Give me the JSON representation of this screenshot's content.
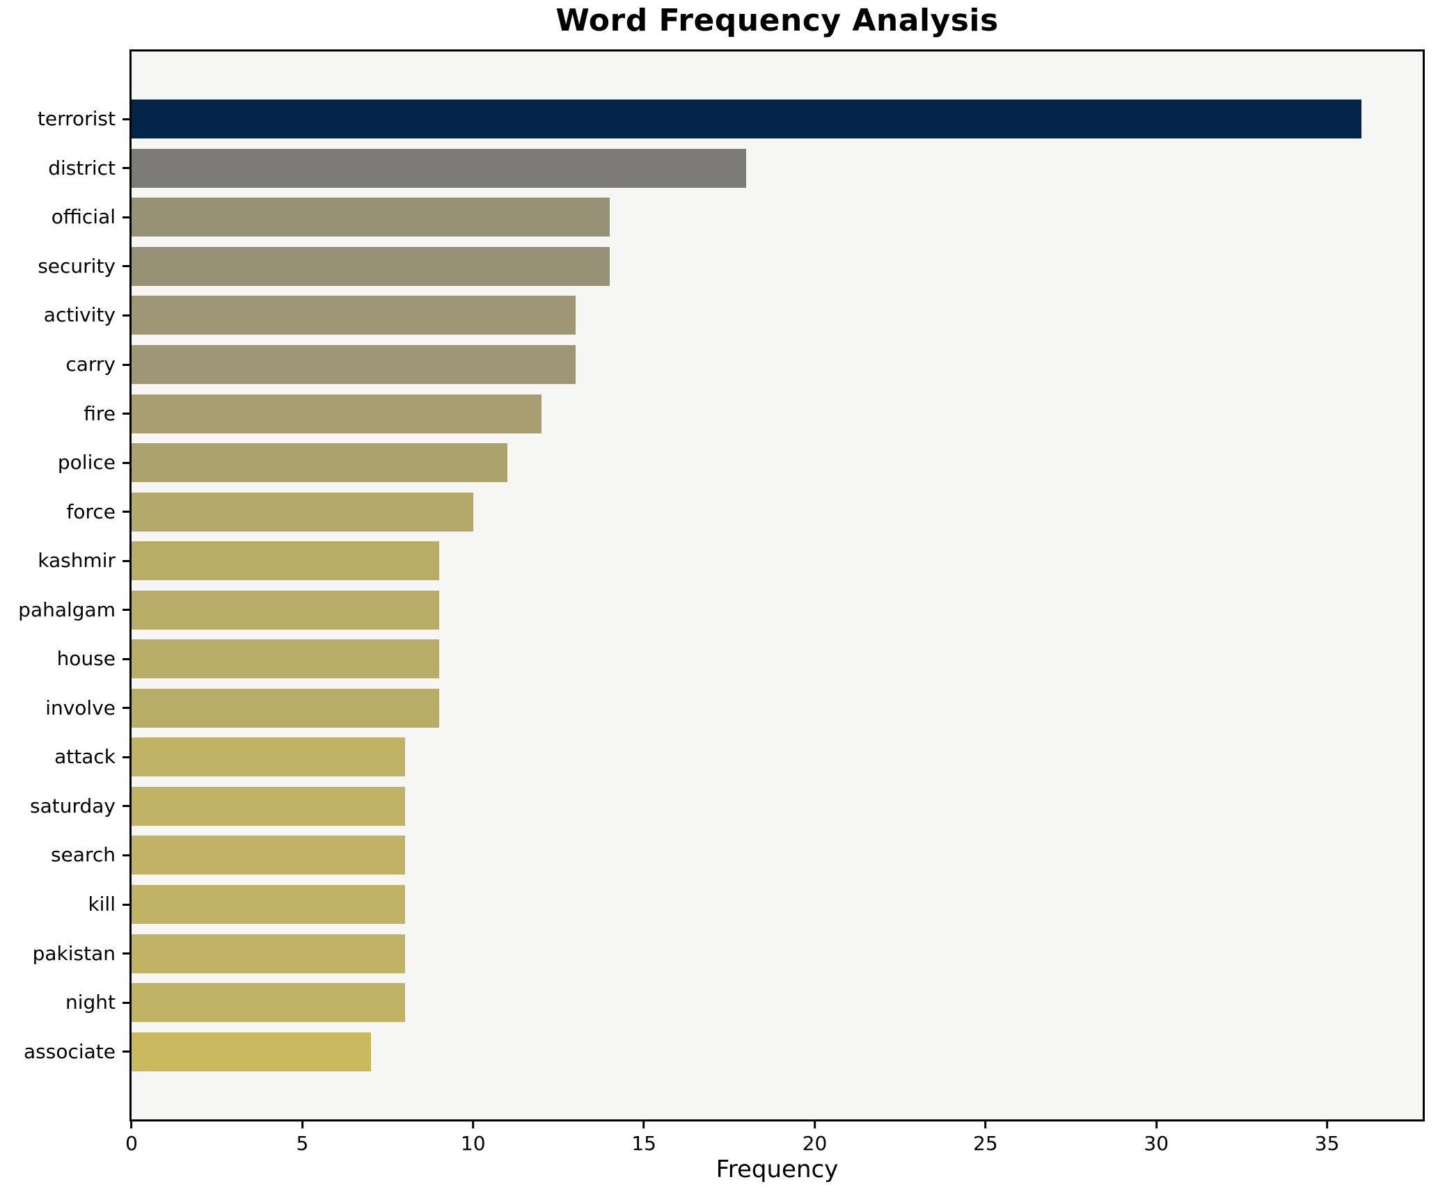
{
  "chart_data": {
    "type": "bar",
    "orientation": "horizontal",
    "title": "Word Frequency Analysis",
    "xlabel": "Frequency",
    "ylabel": "",
    "categories": [
      "terrorist",
      "district",
      "official",
      "security",
      "activity",
      "carry",
      "fire",
      "police",
      "force",
      "kashmir",
      "pahalgam",
      "house",
      "involve",
      "attack",
      "saturday",
      "search",
      "kill",
      "pakistan",
      "night",
      "associate"
    ],
    "values": [
      36,
      18,
      14,
      14,
      13,
      13,
      12,
      11,
      10,
      9,
      9,
      9,
      9,
      8,
      8,
      8,
      8,
      8,
      8,
      7
    ],
    "bar_colors": [
      "#032349",
      "#7C7B78",
      "#979176",
      "#979176",
      "#9E9675",
      "#9E9675",
      "#A89E71",
      "#ACA26E",
      "#B3A96B",
      "#B7AC68",
      "#B7AC68",
      "#B7AC68",
      "#B7AC68",
      "#C1B366",
      "#C1B366",
      "#C1B366",
      "#C1B366",
      "#C1B366",
      "#C1B366",
      "#CAB95F"
    ],
    "x_ticks": [
      0,
      5,
      10,
      15,
      20,
      25,
      30,
      35
    ],
    "xlim": [
      0,
      37.8
    ],
    "grid": false,
    "legend_position": "none",
    "plot_background": "#F6F6F4",
    "figure_background": "#FFFFFF",
    "spine_color": "#000000",
    "text_color": "#000000"
  }
}
